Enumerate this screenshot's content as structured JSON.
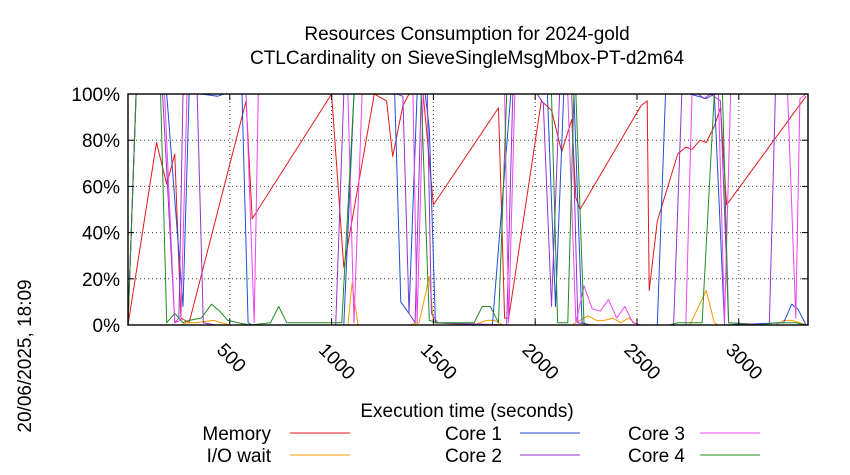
{
  "chart_data": {
    "type": "line",
    "title": [
      "Resources Consumption for 2024-gold",
      "CTLCardinality on SieveSingleMsgMbox-PT-d2m64"
    ],
    "xlabel": "Execution time (seconds)",
    "ylabel": "",
    "xlim": [
      0,
      3340
    ],
    "ylim": [
      0,
      100
    ],
    "xticks": [
      500,
      1000,
      1500,
      2000,
      2500,
      3000
    ],
    "yticks": [
      0,
      20,
      40,
      60,
      80,
      100
    ],
    "ytick_labels": [
      "0%",
      "20%",
      "40%",
      "60%",
      "80%",
      "100%"
    ],
    "grid": true,
    "legend_position": "bottom",
    "side_label": "20/06/2025, 18:09",
    "series": [
      {
        "name": "Memory",
        "color": "#e41a1c",
        "points": [
          [
            0,
            0
          ],
          [
            140,
            79
          ],
          [
            190,
            61
          ],
          [
            230,
            74
          ],
          [
            260,
            3
          ],
          [
            300,
            1
          ],
          [
            580,
            97
          ],
          [
            610,
            46
          ],
          [
            1000,
            100
          ],
          [
            1060,
            25
          ],
          [
            1210,
            100
          ],
          [
            1270,
            97
          ],
          [
            1300,
            73
          ],
          [
            1350,
            95
          ],
          [
            1380,
            100
          ],
          [
            1450,
            100
          ],
          [
            1500,
            52
          ],
          [
            1820,
            94
          ],
          [
            1850,
            3
          ],
          [
            1870,
            3
          ],
          [
            2030,
            97
          ],
          [
            2080,
            93
          ],
          [
            2130,
            75
          ],
          [
            2180,
            89
          ],
          [
            2200,
            55
          ],
          [
            2220,
            50
          ],
          [
            2520,
            95
          ],
          [
            2550,
            97
          ],
          [
            2560,
            15
          ],
          [
            2600,
            45
          ],
          [
            2700,
            74
          ],
          [
            2740,
            77
          ],
          [
            2770,
            76
          ],
          [
            2810,
            80
          ],
          [
            2840,
            79
          ],
          [
            2880,
            86
          ],
          [
            2910,
            94
          ],
          [
            2940,
            52
          ],
          [
            3330,
            99
          ]
        ]
      },
      {
        "name": "I/O wait",
        "color": "#ff9900",
        "points": [
          [
            0,
            0
          ],
          [
            260,
            0
          ],
          [
            290,
            1
          ],
          [
            330,
            1
          ],
          [
            420,
            2
          ],
          [
            460,
            1
          ],
          [
            500,
            0
          ],
          [
            960,
            0
          ],
          [
            1080,
            0
          ],
          [
            1100,
            18
          ],
          [
            1130,
            0
          ],
          [
            1380,
            0
          ],
          [
            1430,
            1
          ],
          [
            1480,
            21
          ],
          [
            1500,
            1
          ],
          [
            1700,
            0
          ],
          [
            1760,
            2
          ],
          [
            1800,
            2
          ],
          [
            1840,
            0
          ],
          [
            2180,
            0
          ],
          [
            2220,
            2
          ],
          [
            2260,
            4
          ],
          [
            2300,
            2
          ],
          [
            2340,
            2
          ],
          [
            2380,
            3
          ],
          [
            2420,
            1
          ],
          [
            2460,
            3
          ],
          [
            2500,
            0
          ],
          [
            2760,
            0
          ],
          [
            2840,
            15
          ],
          [
            2880,
            1
          ],
          [
            2900,
            0
          ],
          [
            3180,
            0
          ],
          [
            3220,
            2
          ],
          [
            3260,
            2
          ],
          [
            3300,
            1
          ],
          [
            3330,
            0
          ]
        ]
      },
      {
        "name": "Core 1",
        "color": "#1f4fd6",
        "points": [
          [
            0,
            0
          ],
          [
            40,
            100
          ],
          [
            190,
            100
          ],
          [
            270,
            8
          ],
          [
            300,
            100
          ],
          [
            360,
            100
          ],
          [
            440,
            99
          ],
          [
            470,
            100
          ],
          [
            560,
            100
          ],
          [
            590,
            1
          ],
          [
            610,
            0
          ],
          [
            1060,
            0
          ],
          [
            1110,
            100
          ],
          [
            1310,
            100
          ],
          [
            1340,
            10
          ],
          [
            1380,
            5
          ],
          [
            1420,
            100
          ],
          [
            1460,
            100
          ],
          [
            1480,
            85
          ],
          [
            1510,
            1
          ],
          [
            1790,
            0
          ],
          [
            1880,
            100
          ],
          [
            2060,
            100
          ],
          [
            2100,
            8
          ],
          [
            2140,
            100
          ],
          [
            2190,
            100
          ],
          [
            2230,
            1
          ],
          [
            2260,
            0
          ],
          [
            2600,
            0
          ],
          [
            2640,
            100
          ],
          [
            2760,
            100
          ],
          [
            2840,
            98
          ],
          [
            2880,
            100
          ],
          [
            2930,
            0
          ],
          [
            3220,
            1
          ],
          [
            3260,
            9
          ],
          [
            3290,
            7
          ],
          [
            3330,
            0
          ]
        ]
      },
      {
        "name": "Core 2",
        "color": "#9933cc",
        "points": [
          [
            0,
            0
          ],
          [
            40,
            100
          ],
          [
            170,
            100
          ],
          [
            230,
            1
          ],
          [
            250,
            3
          ],
          [
            270,
            100
          ],
          [
            340,
            100
          ],
          [
            370,
            1
          ],
          [
            430,
            0
          ],
          [
            900,
            0
          ],
          [
            1020,
            0
          ],
          [
            1060,
            100
          ],
          [
            1150,
            100
          ],
          [
            1320,
            100
          ],
          [
            1350,
            99
          ],
          [
            1380,
            5
          ],
          [
            1410,
            1
          ],
          [
            1440,
            100
          ],
          [
            1470,
            100
          ],
          [
            1490,
            5
          ],
          [
            1520,
            1
          ],
          [
            1860,
            0
          ],
          [
            1890,
            100
          ],
          [
            2010,
            100
          ],
          [
            2040,
            96
          ],
          [
            2080,
            8
          ],
          [
            2120,
            100
          ],
          [
            2180,
            100
          ],
          [
            2210,
            1
          ],
          [
            2280,
            0
          ],
          [
            2680,
            0
          ],
          [
            2720,
            100
          ],
          [
            2800,
            100
          ],
          [
            2830,
            98
          ],
          [
            2860,
            100
          ],
          [
            2910,
            97
          ],
          [
            2950,
            1
          ],
          [
            3150,
            0
          ],
          [
            3180,
            100
          ],
          [
            3330,
            100
          ]
        ]
      },
      {
        "name": "Core 3",
        "color": "#ee44ee",
        "points": [
          [
            0,
            0
          ],
          [
            40,
            100
          ],
          [
            100,
            100
          ],
          [
            180,
            100
          ],
          [
            230,
            1
          ],
          [
            260,
            2
          ],
          [
            290,
            100
          ],
          [
            580,
            100
          ],
          [
            620,
            1
          ],
          [
            640,
            100
          ],
          [
            1080,
            100
          ],
          [
            1110,
            1
          ],
          [
            1150,
            100
          ],
          [
            1400,
            100
          ],
          [
            1420,
            1
          ],
          [
            1450,
            100
          ],
          [
            1850,
            100
          ],
          [
            1870,
            1
          ],
          [
            1900,
            100
          ],
          [
            2160,
            100
          ],
          [
            2200,
            1
          ],
          [
            2240,
            17
          ],
          [
            2280,
            7
          ],
          [
            2320,
            6
          ],
          [
            2360,
            11
          ],
          [
            2400,
            3
          ],
          [
            2440,
            8
          ],
          [
            2480,
            1
          ],
          [
            2520,
            0
          ],
          [
            2740,
            0
          ],
          [
            2770,
            100
          ],
          [
            2900,
            100
          ],
          [
            2930,
            1
          ],
          [
            2960,
            100
          ],
          [
            3240,
            100
          ],
          [
            3280,
            3
          ],
          [
            3300,
            98
          ],
          [
            3330,
            100
          ]
        ]
      },
      {
        "name": "Core 4",
        "color": "#228b22",
        "points": [
          [
            0,
            0
          ],
          [
            40,
            100
          ],
          [
            160,
            100
          ],
          [
            190,
            1
          ],
          [
            230,
            5
          ],
          [
            270,
            1
          ],
          [
            300,
            2
          ],
          [
            360,
            3
          ],
          [
            410,
            9
          ],
          [
            450,
            6
          ],
          [
            490,
            2
          ],
          [
            540,
            1
          ],
          [
            600,
            0
          ],
          [
            700,
            1
          ],
          [
            740,
            8
          ],
          [
            780,
            1
          ],
          [
            1050,
            1
          ],
          [
            1110,
            100
          ],
          [
            1440,
            100
          ],
          [
            1480,
            2
          ],
          [
            1520,
            1
          ],
          [
            1700,
            1
          ],
          [
            1740,
            8
          ],
          [
            1780,
            8
          ],
          [
            1820,
            1
          ],
          [
            1860,
            100
          ],
          [
            2080,
            100
          ],
          [
            2110,
            1
          ],
          [
            2140,
            1
          ],
          [
            2160,
            1
          ],
          [
            2190,
            100
          ],
          [
            2200,
            100
          ],
          [
            2240,
            1
          ],
          [
            2260,
            0
          ],
          [
            2660,
            0
          ],
          [
            2700,
            1
          ],
          [
            2760,
            1
          ],
          [
            2820,
            1
          ],
          [
            2880,
            100
          ],
          [
            2920,
            100
          ],
          [
            2950,
            1
          ],
          [
            3100,
            0
          ],
          [
            3180,
            1
          ],
          [
            3220,
            1
          ],
          [
            3280,
            1
          ],
          [
            3330,
            0
          ]
        ]
      }
    ]
  }
}
